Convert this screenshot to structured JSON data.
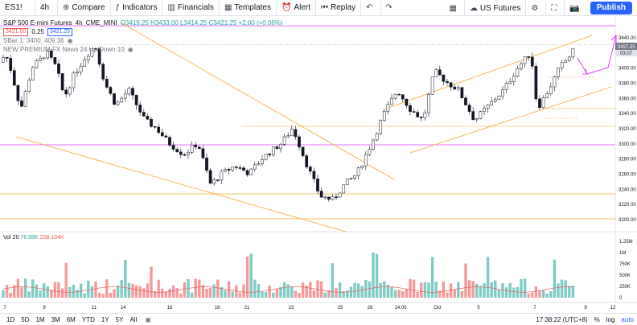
{
  "toolbar": {
    "symbol": "ES1!",
    "interval": "4h",
    "compare": "Compare",
    "indicators": "Indicators",
    "financials": "Financials",
    "templates": "Templates",
    "alert": "Alert",
    "replay": "Replay",
    "instrument": "US Futures",
    "publish": "Publish"
  },
  "legend": {
    "title": "S&P 500 E-mini Futures",
    "interval": "4h",
    "exchange": "CME_MINI",
    "ohlc": "O3419.25 H3433.00 L3414.25 C3421.25 +2.00 (+0.06%)",
    "bid": "3421.00",
    "spread": "0.25",
    "ask": "3421.25",
    "line2": "SBar 1: 3400, 409.36",
    "line3": "NEW PREMIUM FX News 24 Up/Down 10"
  },
  "volume": {
    "label": "Vol 20",
    "v1": "76.68K",
    "v2": "208.134K"
  },
  "price_axis": [
    "3440.00",
    "3427.25",
    "3420.00",
    "3400.00",
    "3380.00",
    "3360.00",
    "3340.00",
    "3320.00",
    "3300.00",
    "3280.00",
    "3260.00",
    "3240.00",
    "3220.00",
    "3200.00"
  ],
  "price_tag": "3427.25",
  "price_tag2": "03:07",
  "vol_axis": [
    "1.25M",
    "1M",
    "750K",
    "500K",
    "250K",
    "0"
  ],
  "time_axis": [
    "7",
    "9",
    "11",
    "14",
    "16",
    "18",
    "21",
    "23",
    "25",
    "28",
    "14:00",
    "Oct",
    "5",
    "7",
    "9",
    "12"
  ],
  "bottom": {
    "ranges": [
      "1D",
      "5D",
      "1M",
      "3M",
      "6M",
      "YTD",
      "1Y",
      "5Y",
      "All"
    ],
    "clock": "17:38:22 (UTC+8)",
    "pct": "%",
    "log": "log",
    "auto": "auto"
  },
  "colors": {
    "up": "#26a69a",
    "down": "#000000",
    "vol_up": "#80cbc4",
    "vol_down": "#f49a9a",
    "orange": "#f7a733",
    "magenta": "#e040fb"
  }
}
